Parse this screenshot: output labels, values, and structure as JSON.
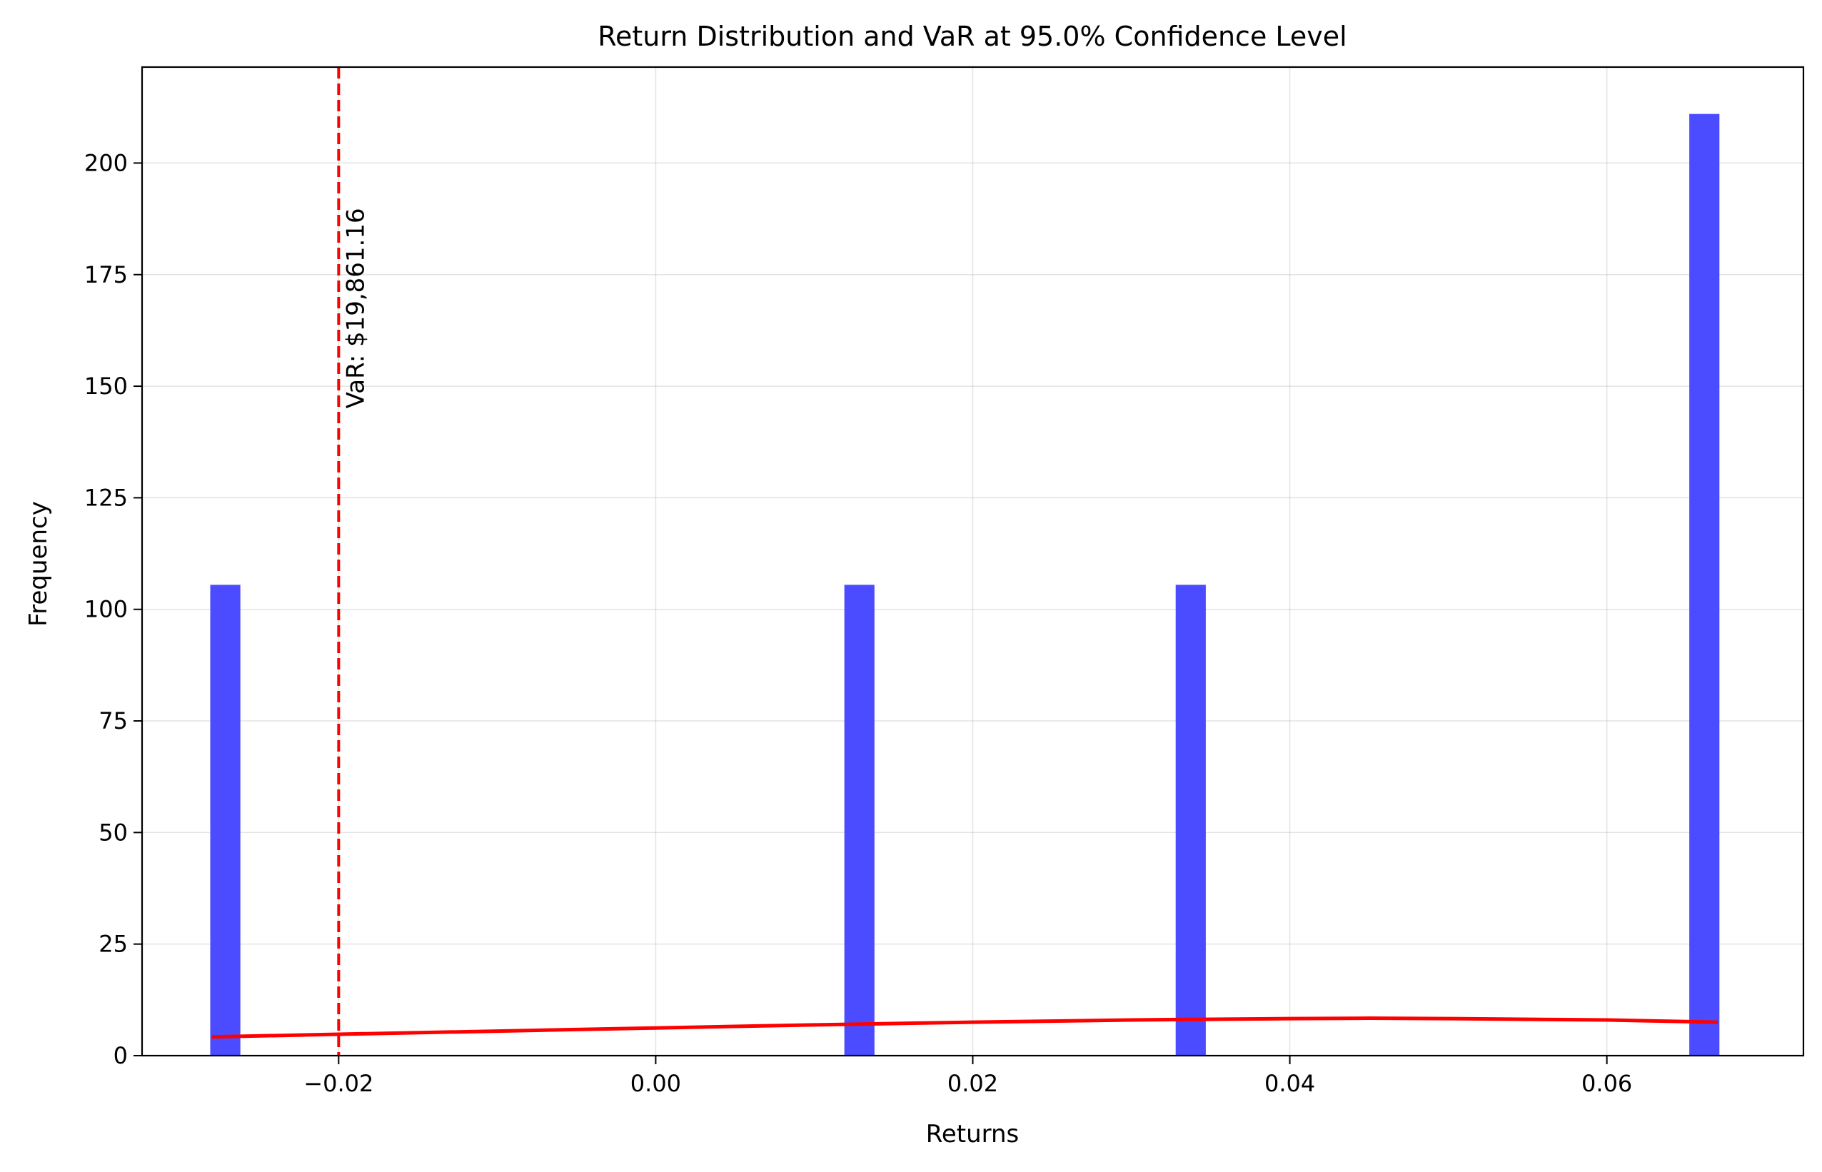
{
  "chart_data": {
    "type": "bar",
    "title": "Return Distribution and VaR at 95.0% Confidence Level",
    "xlabel": "Returns",
    "ylabel": "Frequency",
    "xlim": [
      -0.0324,
      0.0724
    ],
    "ylim": [
      0,
      221.5
    ],
    "xticks": [
      -0.02,
      0.0,
      0.02,
      0.04,
      0.06
    ],
    "xtick_labels": [
      "−0.02",
      "0.00",
      "0.02",
      "0.04",
      "0.06"
    ],
    "yticks": [
      0,
      25,
      50,
      75,
      100,
      125,
      150,
      175,
      200
    ],
    "ytick_labels": [
      "0",
      "25",
      "50",
      "75",
      "100",
      "125",
      "150",
      "175",
      "200"
    ],
    "grid": true,
    "bar_color": "#4B4BFF",
    "bins": [
      {
        "x0": -0.0281,
        "x1": -0.0262,
        "count": 105.5
      },
      {
        "x0": 0.0119,
        "x1": 0.0138,
        "count": 105.5
      },
      {
        "x0": 0.0328,
        "x1": 0.0347,
        "count": 105.5
      },
      {
        "x0": 0.0652,
        "x1": 0.0671,
        "count": 211
      }
    ],
    "kde": {
      "color": "#FF0000",
      "x": [
        -0.028,
        -0.02,
        -0.01,
        0.0,
        0.01,
        0.02,
        0.03,
        0.04,
        0.045,
        0.05,
        0.06,
        0.067
      ],
      "y": [
        4.2,
        4.8,
        5.5,
        6.2,
        6.9,
        7.5,
        8.0,
        8.3,
        8.4,
        8.3,
        8.0,
        7.5
      ]
    },
    "var_line": {
      "x": -0.02,
      "color": "#FF0000",
      "style": "dashed",
      "label": "VaR: $19,861.16"
    }
  }
}
